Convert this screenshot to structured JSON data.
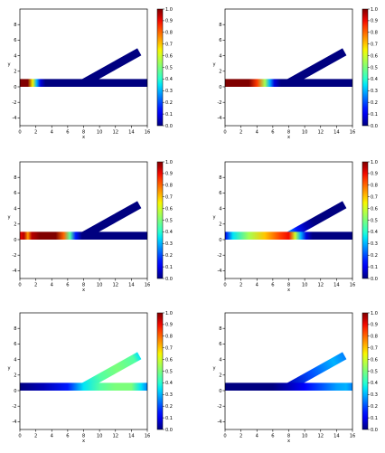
{
  "chart_data": [
    {
      "type": "heatmap",
      "panel": "top-left",
      "xlabel": "x",
      "ylabel": "y",
      "xlim": [
        0,
        16
      ],
      "ylim": [
        -5,
        10
      ],
      "x_ticks": [
        "0",
        "2",
        "4",
        "6",
        "8",
        "10",
        "12",
        "14",
        "16"
      ],
      "y_ticks": [
        "-4",
        "-2",
        "0",
        "2",
        "4",
        "6",
        "8"
      ],
      "colorbar": {
        "range": [
          0,
          1
        ],
        "ticks": [
          "0.0",
          "0.1",
          "0.2",
          "0.3",
          "0.4",
          "0.5",
          "0.6",
          "0.7",
          "0.8",
          "0.9",
          "1.0"
        ],
        "colormap": "jet"
      },
      "geometry": {
        "channel_y": [
          0,
          1
        ],
        "channel_x": [
          0,
          16
        ],
        "branch_start_x": 8,
        "branch_end": [
          15,
          4.5
        ]
      },
      "field": {
        "main": [
          [
            0,
            1.0
          ],
          [
            1.0,
            1.0
          ],
          [
            1.6,
            0.65
          ],
          [
            2.1,
            0.3
          ],
          [
            2.6,
            0.08
          ],
          [
            3.2,
            0.0
          ],
          [
            16,
            0.0
          ]
        ],
        "branch": [
          [
            0,
            0.0
          ],
          [
            1,
            0.0
          ]
        ]
      }
    },
    {
      "type": "heatmap",
      "panel": "top-right",
      "xlabel": "x",
      "ylabel": "y",
      "xlim": [
        0,
        16
      ],
      "ylim": [
        -5,
        10
      ],
      "x_ticks": [
        "0",
        "2",
        "4",
        "6",
        "8",
        "10",
        "12",
        "14",
        "16"
      ],
      "y_ticks": [
        "-4",
        "-2",
        "0",
        "2",
        "4",
        "6",
        "8"
      ],
      "colorbar": {
        "range": [
          0,
          1
        ],
        "ticks": [
          "0.0",
          "0.1",
          "0.2",
          "0.3",
          "0.4",
          "0.5",
          "0.6",
          "0.7",
          "0.8",
          "0.9",
          "1.0"
        ],
        "colormap": "jet"
      },
      "geometry": {
        "channel_y": [
          0,
          1
        ],
        "channel_x": [
          0,
          16
        ],
        "branch_start_x": 8,
        "branch_end": [
          15,
          4.5
        ]
      },
      "field": {
        "main": [
          [
            0,
            1.0
          ],
          [
            3.0,
            1.0
          ],
          [
            4.0,
            0.85
          ],
          [
            5.0,
            0.55
          ],
          [
            5.6,
            0.3
          ],
          [
            6.2,
            0.08
          ],
          [
            7.0,
            0.0
          ],
          [
            16,
            0.0
          ]
        ],
        "branch": [
          [
            0,
            0.0
          ],
          [
            1,
            0.0
          ]
        ]
      }
    },
    {
      "type": "heatmap",
      "panel": "middle-left",
      "xlabel": "x",
      "ylabel": "y",
      "xlim": [
        0,
        16
      ],
      "ylim": [
        -5,
        10
      ],
      "x_ticks": [
        "0",
        "2",
        "4",
        "6",
        "8",
        "10",
        "12",
        "14",
        "16"
      ],
      "y_ticks": [
        "-4",
        "-2",
        "0",
        "2",
        "4",
        "6",
        "8"
      ],
      "colorbar": {
        "range": [
          0,
          1
        ],
        "ticks": [
          "0.0",
          "0.1",
          "0.2",
          "0.3",
          "0.4",
          "0.5",
          "0.6",
          "0.7",
          "0.8",
          "0.9",
          "1.0"
        ],
        "colormap": "jet"
      },
      "geometry": {
        "channel_y": [
          0,
          1
        ],
        "channel_x": [
          0,
          16
        ],
        "branch_start_x": 8,
        "branch_end": [
          15,
          4.5
        ]
      },
      "field": {
        "main": [
          [
            0,
            0.9
          ],
          [
            0.5,
            0.95
          ],
          [
            1.0,
            0.75
          ],
          [
            1.5,
            0.95
          ],
          [
            2.5,
            1.0
          ],
          [
            4.5,
            1.0
          ],
          [
            5.5,
            0.8
          ],
          [
            6.3,
            0.45
          ],
          [
            7.0,
            0.15
          ],
          [
            7.8,
            0.0
          ],
          [
            16,
            0.0
          ]
        ],
        "branch": [
          [
            0,
            0.0
          ],
          [
            1,
            0.0
          ]
        ]
      }
    },
    {
      "type": "heatmap",
      "panel": "middle-right",
      "xlabel": "x",
      "ylabel": "y",
      "xlim": [
        0,
        16
      ],
      "ylim": [
        -5,
        10
      ],
      "x_ticks": [
        "0",
        "2",
        "4",
        "6",
        "8",
        "10",
        "12",
        "14",
        "16"
      ],
      "y_ticks": [
        "-4",
        "-2",
        "0",
        "2",
        "4",
        "6",
        "8"
      ],
      "colorbar": {
        "range": [
          0,
          1
        ],
        "ticks": [
          "0.0",
          "0.1",
          "0.2",
          "0.3",
          "0.4",
          "0.5",
          "0.6",
          "0.7",
          "0.8",
          "0.9",
          "1.0"
        ],
        "colormap": "jet"
      },
      "geometry": {
        "channel_y": [
          0,
          1
        ],
        "channel_x": [
          0,
          16
        ],
        "branch_start_x": 8,
        "branch_end": [
          15,
          4.5
        ]
      },
      "field": {
        "main": [
          [
            0,
            0.1
          ],
          [
            1.0,
            0.35
          ],
          [
            3.0,
            0.55
          ],
          [
            5.0,
            0.7
          ],
          [
            7.0,
            0.85
          ],
          [
            8.0,
            0.9
          ],
          [
            8.8,
            0.6
          ],
          [
            9.5,
            0.3
          ],
          [
            10.2,
            0.08
          ],
          [
            11.0,
            0.0
          ],
          [
            16,
            0.0
          ]
        ],
        "branch": [
          [
            0,
            0.3
          ],
          [
            0.15,
            0.15
          ],
          [
            0.3,
            0.05
          ],
          [
            0.45,
            0.0
          ],
          [
            1,
            0.0
          ]
        ]
      }
    },
    {
      "type": "heatmap",
      "panel": "bottom-left",
      "xlabel": "x",
      "ylabel": "y",
      "xlim": [
        0,
        16
      ],
      "ylim": [
        -5,
        10
      ],
      "x_ticks": [
        "0",
        "2",
        "4",
        "6",
        "8",
        "10",
        "12",
        "14",
        "16"
      ],
      "y_ticks": [
        "-4",
        "-2",
        "0",
        "2",
        "4",
        "6",
        "8"
      ],
      "colorbar": {
        "range": [
          0,
          1
        ],
        "ticks": [
          "0.0",
          "0.1",
          "0.2",
          "0.3",
          "0.4",
          "0.5",
          "0.6",
          "0.7",
          "0.8",
          "0.9",
          "1.0"
        ],
        "colormap": "jet"
      },
      "geometry": {
        "channel_y": [
          0,
          1
        ],
        "channel_x": [
          0,
          16
        ],
        "branch_start_x": 8,
        "branch_end": [
          15,
          4.5
        ]
      },
      "field": {
        "main": [
          [
            0,
            0.0
          ],
          [
            3.0,
            0.05
          ],
          [
            6.0,
            0.15
          ],
          [
            8.0,
            0.35
          ],
          [
            10.0,
            0.45
          ],
          [
            12.0,
            0.5
          ],
          [
            14.0,
            0.5
          ],
          [
            15.2,
            0.35
          ],
          [
            16,
            0.25
          ]
        ],
        "branch": [
          [
            0,
            0.35
          ],
          [
            0.3,
            0.45
          ],
          [
            0.6,
            0.5
          ],
          [
            0.9,
            0.45
          ],
          [
            1,
            0.35
          ]
        ]
      }
    },
    {
      "type": "heatmap",
      "panel": "bottom-right",
      "xlabel": "x",
      "ylabel": "y",
      "xlim": [
        0,
        16
      ],
      "ylim": [
        -5,
        10
      ],
      "x_ticks": [
        "0",
        "2",
        "4",
        "6",
        "8",
        "10",
        "12",
        "14",
        "16"
      ],
      "y_ticks": [
        "-4",
        "-2",
        "0",
        "2",
        "4",
        "6",
        "8"
      ],
      "colorbar": {
        "range": [
          0,
          1
        ],
        "ticks": [
          "0.0",
          "0.1",
          "0.2",
          "0.3",
          "0.4",
          "0.5",
          "0.6",
          "0.7",
          "0.8",
          "0.9",
          "1.0"
        ],
        "colormap": "jet"
      },
      "geometry": {
        "channel_y": [
          0,
          1
        ],
        "channel_x": [
          0,
          16
        ],
        "branch_start_x": 8,
        "branch_end": [
          15,
          4.5
        ]
      },
      "field": {
        "main": [
          [
            0,
            0.0
          ],
          [
            6.0,
            0.0
          ],
          [
            8.0,
            0.05
          ],
          [
            10.0,
            0.12
          ],
          [
            12.0,
            0.2
          ],
          [
            14.0,
            0.28
          ],
          [
            15.2,
            0.3
          ],
          [
            16,
            0.25
          ]
        ],
        "branch": [
          [
            0,
            0.05
          ],
          [
            0.4,
            0.2
          ],
          [
            0.8,
            0.3
          ],
          [
            1,
            0.25
          ]
        ]
      }
    }
  ]
}
